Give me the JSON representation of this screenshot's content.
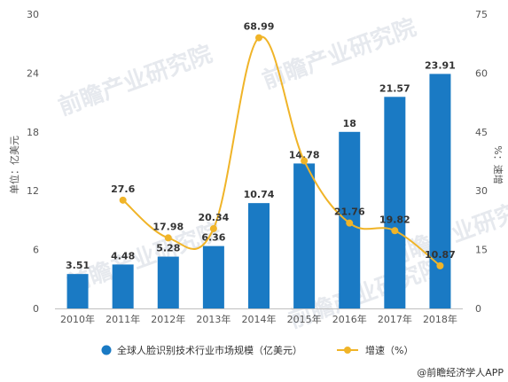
{
  "chart_data": {
    "type": "bar",
    "categories": [
      "2010年",
      "2011年",
      "2012年",
      "2013年",
      "2014年",
      "2015年",
      "2016年",
      "2017年",
      "2018年"
    ],
    "series": [
      {
        "name": "全球人脸识别技术行业市场规模（亿美元）",
        "type": "bar",
        "axis": "left",
        "color": "#1a7ac4",
        "values": [
          3.51,
          4.48,
          5.28,
          6.36,
          10.74,
          14.78,
          18,
          21.57,
          23.91
        ],
        "labels": [
          "3.51",
          "4.48",
          "5.28",
          "6.36",
          "10.74",
          "14.78",
          "18",
          "21.57",
          "23.91"
        ]
      },
      {
        "name": "增速（%）",
        "type": "line",
        "axis": "right",
        "color": "#f0b428",
        "values": [
          null,
          27.6,
          17.98,
          20.34,
          68.99,
          37.62,
          21.76,
          19.82,
          10.87
        ],
        "labels": [
          "",
          "27.6",
          "17.98",
          "20.34",
          "68.99",
          "",
          "21.76",
          "19.82",
          "10.87"
        ]
      }
    ],
    "ylabel": "单位：亿美元",
    "ylabel_right": "%：速增",
    "ylim": [
      0,
      30
    ],
    "yticks": [
      "0",
      "6",
      "12",
      "18",
      "24",
      "30"
    ],
    "ylim_right": [
      0,
      75
    ],
    "yticks_right": [
      "0",
      "15",
      "30",
      "45",
      "60",
      "75"
    ],
    "grid": false,
    "legend_position": "bottom"
  },
  "watermark": "前瞻产业研究院",
  "source": "@前瞻经济学人APP"
}
